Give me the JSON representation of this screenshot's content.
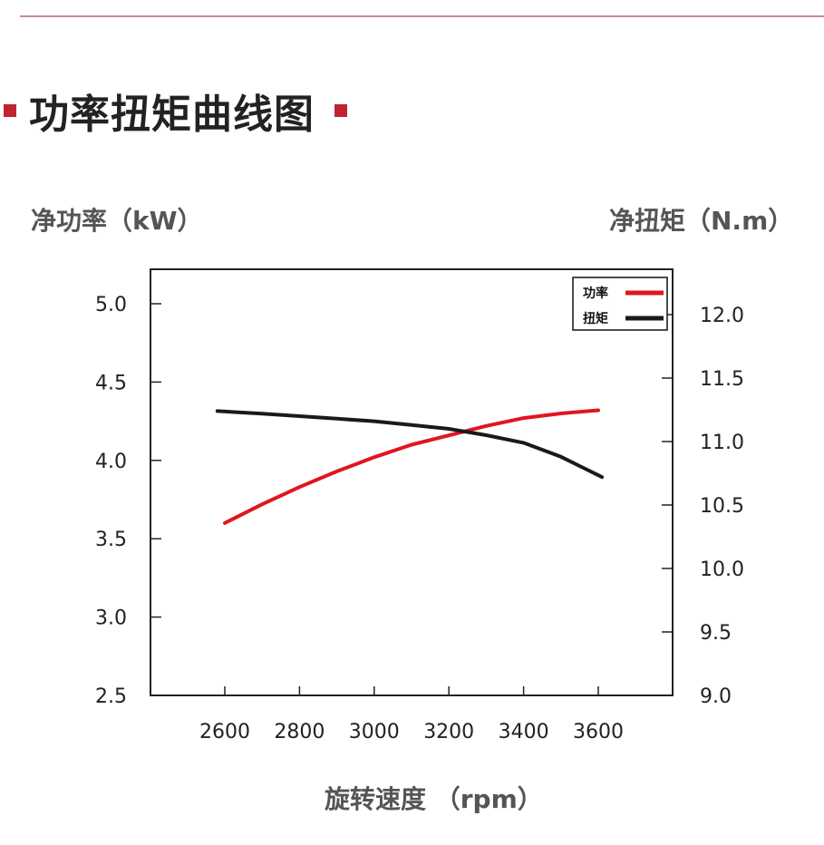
{
  "title": "功率扭矩曲线图",
  "colors": {
    "accent": "#c0242f",
    "power": "#e0161f",
    "torque": "#1a1a1a"
  },
  "chart_data": {
    "type": "line",
    "xlabel": "旋转速度 （rpm）",
    "ylabel": "净功率（kW）",
    "y2label": "净扭矩（N.m）",
    "x_ticks": [
      "2600",
      "2800",
      "3000",
      "3200",
      "3400",
      "3600"
    ],
    "y_ticks": [
      "2.5",
      "3.0",
      "3.5",
      "4.0",
      "4.5",
      "5.0"
    ],
    "y2_ticks": [
      "9.0",
      "9.5",
      "10.0",
      "10.5",
      "11.0",
      "11.5",
      "12.0"
    ],
    "xlim": [
      2400,
      3600
    ],
    "ylim": [
      2.5,
      5.0
    ],
    "y2lim": [
      9.0,
      12.0
    ],
    "legend": "top-right",
    "series": [
      {
        "name": "功率",
        "axis": "left",
        "color": "#e0161f",
        "x": [
          2600,
          2700,
          2800,
          2900,
          3000,
          3100,
          3200,
          3300,
          3400,
          3500,
          3600
        ],
        "y": [
          3.6,
          3.72,
          3.83,
          3.93,
          4.02,
          4.1,
          4.16,
          4.22,
          4.27,
          4.3,
          4.32
        ]
      },
      {
        "name": "扭矩",
        "axis": "right",
        "color": "#1a1a1a",
        "x": [
          2580,
          2700,
          2800,
          2900,
          3000,
          3100,
          3200,
          3300,
          3400,
          3500,
          3610
        ],
        "y": [
          11.24,
          11.22,
          11.2,
          11.18,
          11.16,
          11.13,
          11.1,
          11.05,
          10.99,
          10.88,
          10.72
        ]
      }
    ]
  }
}
